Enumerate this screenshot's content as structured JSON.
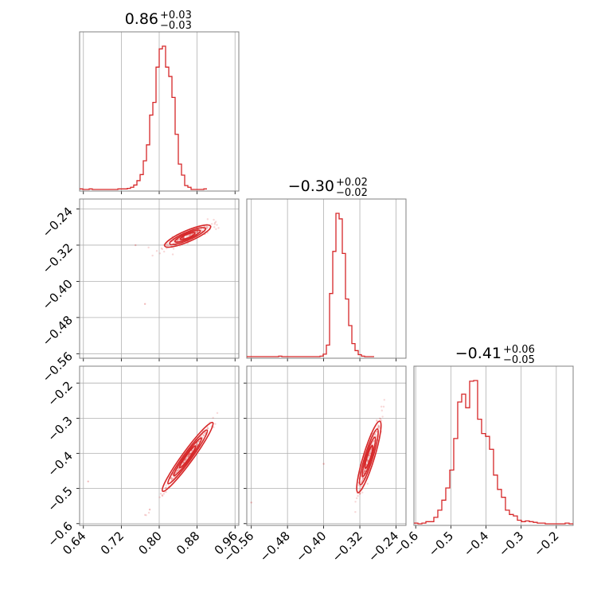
{
  "colors": {
    "accent": "#d62728",
    "grid": "#b0b0b0",
    "frame": "#808080"
  },
  "chart_data": {
    "type": "corner",
    "grid": true,
    "parameters": [
      {
        "median": "0.86",
        "plus": "+0.03",
        "minus": "−0.03",
        "ticks": [
          0.64,
          0.72,
          0.8,
          0.88,
          0.96
        ],
        "tick_labels": [
          "0.64",
          "0.72",
          "0.80",
          "0.88",
          "0.96"
        ],
        "range": [
          0.632,
          0.968
        ]
      },
      {
        "median": "−0.30",
        "plus": "+0.02",
        "minus": "−0.02",
        "ticks": [
          -0.56,
          -0.48,
          -0.4,
          -0.32,
          -0.24
        ],
        "tick_labels": [
          "−0.56",
          "−0.48",
          "−0.40",
          "−0.32",
          "−0.24"
        ],
        "range": [
          -0.57,
          -0.218
        ]
      },
      {
        "median": "−0.41",
        "plus": "+0.06",
        "minus": "−0.05",
        "ticks": [
          -0.6,
          -0.5,
          -0.4,
          -0.3,
          -0.2
        ],
        "tick_labels": [
          "−0.6",
          "−0.5",
          "−0.4",
          "−0.3",
          "−0.2"
        ],
        "range": [
          -0.605,
          -0.152
        ]
      }
    ],
    "histograms": [
      {
        "param": 0,
        "bin_start": 0.632,
        "bin_width": 0.00672,
        "counts": [
          1,
          0,
          0,
          1,
          0,
          0,
          0,
          0,
          0,
          0,
          0,
          0,
          1,
          1,
          1,
          2,
          4,
          8,
          16,
          27,
          52,
          81,
          135,
          158,
          222,
          255,
          260,
          222,
          205,
          167,
          100,
          46,
          26,
          7,
          4,
          0,
          0,
          0,
          0,
          1
        ]
      },
      {
        "param": 1,
        "bin_start": -0.57,
        "bin_width": 0.00704,
        "counts": [
          0,
          0,
          0,
          0,
          0,
          0,
          0,
          0,
          0,
          0,
          1,
          0,
          0,
          0,
          0,
          0,
          0,
          0,
          0,
          0,
          0,
          0,
          0,
          1,
          5,
          23,
          126,
          210,
          286,
          275,
          206,
          115,
          62,
          26,
          12,
          4,
          1,
          0,
          0,
          0
        ]
      },
      {
        "param": 2,
        "bin_start": -0.605,
        "bin_width": 0.01132,
        "counts": [
          1,
          0,
          1,
          3,
          3,
          9,
          19,
          33,
          50,
          75,
          119,
          170,
          181,
          162,
          199,
          200,
          146,
          126,
          122,
          104,
          68,
          48,
          37,
          19,
          13,
          11,
          5,
          3,
          4,
          3,
          2,
          1,
          1,
          0,
          0,
          0,
          0,
          0,
          1,
          0
        ]
      }
    ],
    "pairs": [
      {
        "x_param": 0,
        "y_param": 1,
        "relation": "y = -0.30 + 0.45 * (x - 0.86)",
        "scatter": [
          0.75,
          -0.32,
          0.77,
          -0.45
        ]
      },
      {
        "x_param": 0,
        "y_param": 2,
        "relation": "y = -0.41 + 1.85 * (x - 0.86)",
        "scatter": [
          0.65,
          -0.48,
          0.78,
          -0.56
        ]
      },
      {
        "x_param": 1,
        "y_param": 2,
        "relation": "y = -0.41 + 4.2 * (x + 0.30)",
        "scatter": [
          -0.56,
          -0.54,
          -0.4,
          -0.43
        ]
      }
    ]
  }
}
